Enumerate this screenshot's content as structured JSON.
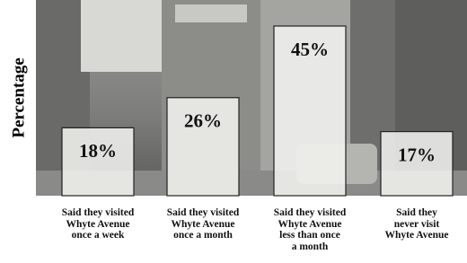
{
  "chart_data": {
    "type": "bar",
    "y_label": "Percentage",
    "categories": [
      "Said they visited\nWhyte Avenue\nonce a week",
      "Said they visited\nWhyte Avenue\nonce a month",
      "Said they visited\nWhyte Avenue\nless than once\na month",
      "Said they\nnever visit\nWhyte Avenue"
    ],
    "values": [
      18,
      26,
      45,
      17
    ],
    "value_labels": [
      "18%",
      "26%",
      "45%",
      "17%"
    ],
    "color": "#f4f4f2"
  }
}
